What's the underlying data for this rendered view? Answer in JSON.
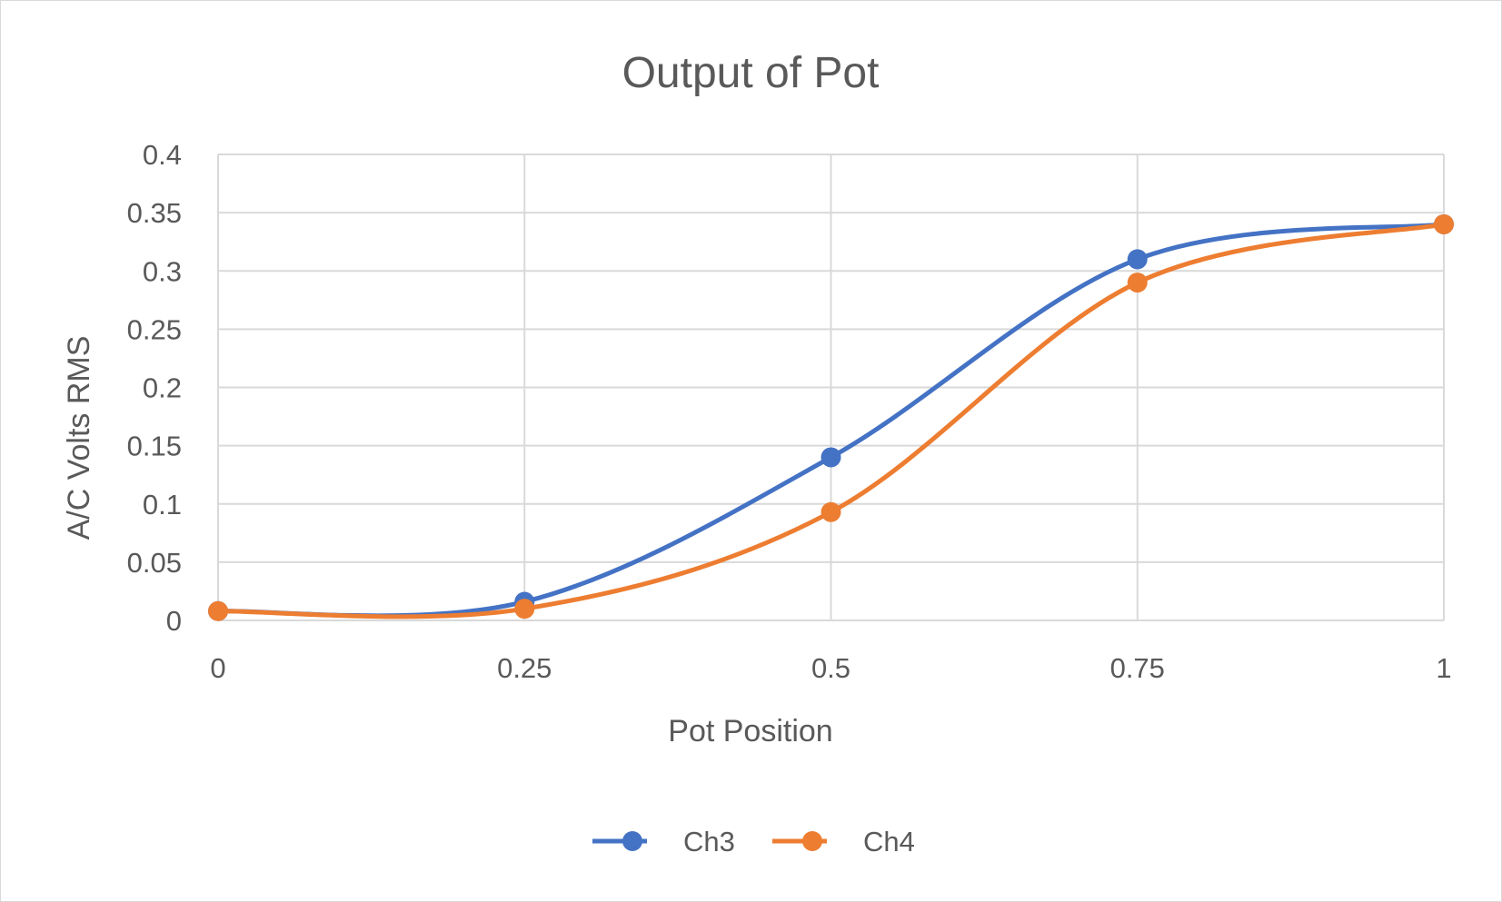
{
  "chart_data": {
    "type": "line",
    "title": "Output of Pot",
    "xlabel": "Pot Position",
    "ylabel": "A/C Volts RMS",
    "xlim": [
      0,
      1
    ],
    "ylim": [
      0,
      0.4
    ],
    "x_ticks": [
      "0",
      "0.25",
      "0.5",
      "0.75",
      "1"
    ],
    "y_ticks": [
      "0",
      "0.05",
      "0.1",
      "0.15",
      "0.2",
      "0.25",
      "0.3",
      "0.35",
      "0.4"
    ],
    "x": [
      0,
      0.25,
      0.5,
      0.75,
      1
    ],
    "grid": true,
    "smoothed": true,
    "legend_position": "bottom",
    "series": [
      {
        "name": "Ch3",
        "color": "#4472C4",
        "values": [
          0.008,
          0.016,
          0.14,
          0.31,
          0.34
        ]
      },
      {
        "name": "Ch4",
        "color": "#ED7D31",
        "values": [
          0.008,
          0.01,
          0.093,
          0.29,
          0.34
        ]
      }
    ]
  }
}
